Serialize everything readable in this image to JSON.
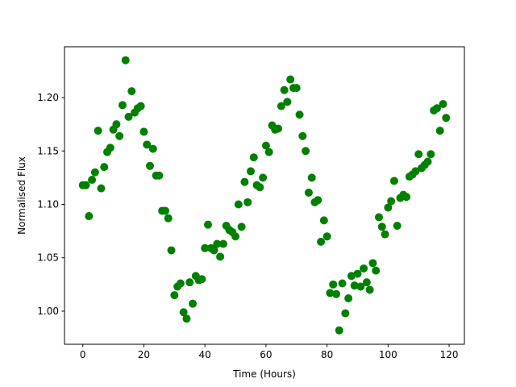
{
  "chart_data": {
    "type": "scatter",
    "title": "",
    "xlabel": "Time (Hours)",
    "ylabel": "Normalised Flux",
    "xlim": [
      -6,
      125
    ],
    "ylim": [
      0.969,
      1.2476
    ],
    "xticks": [
      0,
      20,
      40,
      60,
      80,
      100,
      120
    ],
    "yticks": [
      1.0,
      1.05,
      1.1,
      1.15,
      1.2
    ],
    "xtick_labels": [
      "0",
      "20",
      "40",
      "60",
      "80",
      "100",
      "120"
    ],
    "ytick_labels": [
      "1.00",
      "1.05",
      "1.10",
      "1.15",
      "1.20"
    ],
    "grid": false,
    "marker_color": "#008000",
    "x": [
      0,
      1,
      2,
      3,
      4,
      5,
      6,
      7,
      8,
      9,
      10,
      11,
      12,
      13,
      14,
      15,
      16,
      17,
      18,
      19,
      20,
      21,
      22,
      23,
      24,
      25,
      26,
      27,
      28,
      29,
      30,
      31,
      32,
      33,
      34,
      35,
      36,
      37,
      38,
      39,
      40,
      41,
      42,
      43,
      44,
      45,
      46,
      47,
      48,
      49,
      50,
      51,
      52,
      53,
      54,
      55,
      56,
      57,
      58,
      59,
      60,
      61,
      62,
      63,
      64,
      65,
      66,
      67,
      68,
      69,
      70,
      71,
      72,
      73,
      74,
      75,
      76,
      77,
      78,
      79,
      80,
      81,
      82,
      83,
      84,
      85,
      86,
      87,
      88,
      89,
      90,
      91,
      92,
      93,
      94,
      95,
      96,
      97,
      98,
      99,
      100,
      101,
      102,
      103,
      104,
      105,
      106,
      107,
      108,
      109,
      110,
      111,
      112,
      113,
      114,
      115,
      116,
      117,
      118,
      119
    ],
    "y": [
      1.118,
      1.118,
      1.089,
      1.123,
      1.13,
      1.169,
      1.115,
      1.135,
      1.149,
      1.153,
      1.17,
      1.175,
      1.164,
      1.193,
      1.235,
      1.182,
      1.206,
      1.186,
      1.19,
      1.192,
      1.168,
      1.156,
      1.136,
      1.152,
      1.127,
      1.127,
      1.094,
      1.094,
      1.087,
      1.057,
      1.015,
      1.023,
      1.026,
      0.999,
      0.993,
      1.027,
      1.007,
      1.033,
      1.029,
      1.03,
      1.059,
      1.081,
      1.059,
      1.057,
      1.063,
      1.051,
      1.063,
      1.08,
      1.076,
      1.074,
      1.07,
      1.1,
      1.079,
      1.121,
      1.102,
      1.131,
      1.144,
      1.118,
      1.116,
      1.125,
      1.155,
      1.149,
      1.174,
      1.17,
      1.171,
      1.192,
      1.207,
      1.196,
      1.217,
      1.209,
      1.209,
      1.184,
      1.164,
      1.15,
      1.111,
      1.125,
      1.102,
      1.104,
      1.065,
      1.085,
      1.07,
      1.017,
      1.025,
      1.016,
      0.982,
      1.026,
      0.998,
      1.012,
      1.033,
      1.024,
      1.035,
      1.023,
      1.04,
      1.027,
      1.02,
      1.045,
      1.038,
      1.088,
      1.079,
      1.072,
      1.097,
      1.103,
      1.122,
      1.08,
      1.106,
      1.109,
      1.107,
      1.126,
      1.128,
      1.131,
      1.147,
      1.134,
      1.137,
      1.14,
      1.147,
      1.188,
      1.19,
      1.169,
      1.194,
      1.181
    ]
  }
}
